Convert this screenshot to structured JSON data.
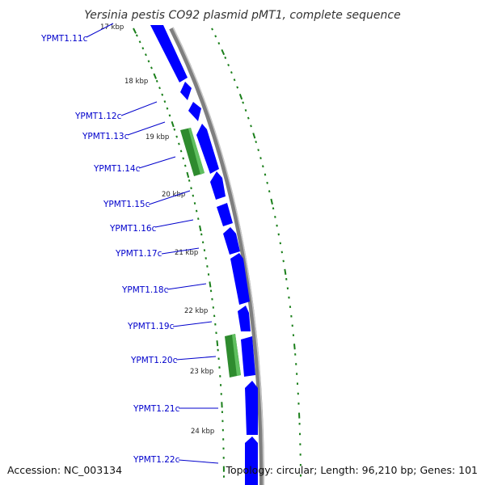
{
  "title": "Yersinia pestis CO92 plasmid pMT1, complete sequence",
  "footer": {
    "accession": "Accession: NC_003134",
    "summary": "Topology: circular; Length: 96,210 bp; Genes: 101"
  },
  "colors": {
    "forward_cds": "#0000ff",
    "other_feature": "#228b22",
    "backbone": "#808080",
    "label": "#0000cc",
    "gc_ticks": "#1a7f1a"
  },
  "kbp_ticks": [
    "17 kbp",
    "18 kbp",
    "19 kbp",
    "20 kbp",
    "21 kbp",
    "22 kbp",
    "23 kbp",
    "24 kbp"
  ],
  "genes": [
    "YPMT1.11c",
    "YPMT1.12c",
    "YPMT1.13c",
    "YPMT1.14c",
    "YPMT1.15c",
    "YPMT1.16c",
    "YPMT1.17c",
    "YPMT1.18c",
    "YPMT1.19c",
    "YPMT1.20c",
    "YPMT1.21c",
    "YPMT1.22c"
  ]
}
